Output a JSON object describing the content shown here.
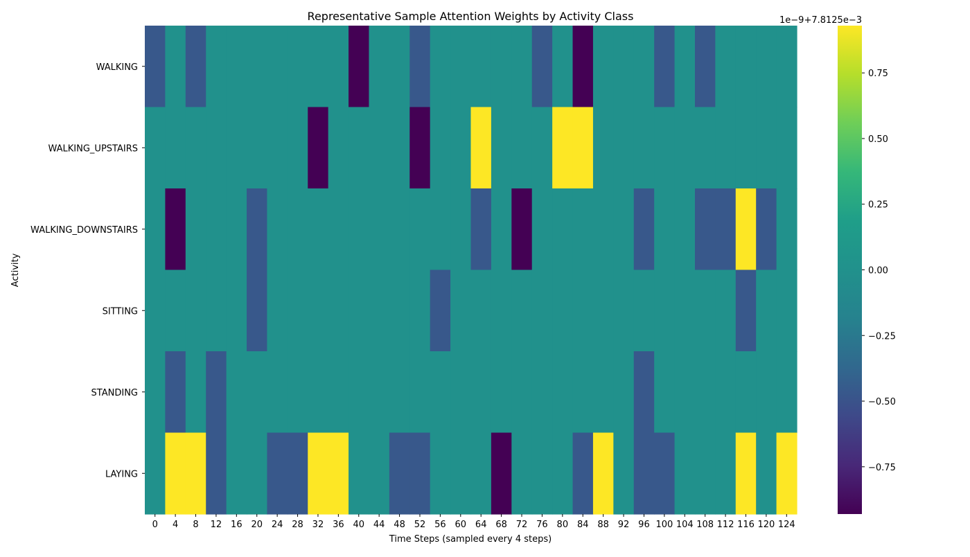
{
  "chart_data": {
    "type": "heatmap",
    "title": "Representative Sample Attention Weights by Activity Class",
    "xlabel": "Time Steps (sampled every 4 steps)",
    "ylabel": "Activity",
    "rows": [
      "WALKING",
      "WALKING_UPSTAIRS",
      "WALKING_DOWNSTAIRS",
      "SITTING",
      "STANDING",
      "LAYING"
    ],
    "x_tick_labels": [
      "0",
      "4",
      "8",
      "12",
      "16",
      "20",
      "24",
      "28",
      "32",
      "36",
      "40",
      "44",
      "48",
      "52",
      "56",
      "60",
      "64",
      "68",
      "72",
      "76",
      "80",
      "84",
      "88",
      "92",
      "96",
      "100",
      "104",
      "108",
      "112",
      "116",
      "120",
      "124"
    ],
    "levels": [
      [
        -1,
        0,
        -1,
        0,
        0,
        0,
        0,
        0,
        0,
        0,
        -2,
        0,
        0,
        -1,
        0,
        0,
        0,
        0,
        0,
        -1,
        0,
        -2,
        0,
        0,
        0,
        -1,
        0,
        -1,
        0,
        0,
        0,
        0
      ],
      [
        0,
        0,
        0,
        0,
        0,
        0,
        0,
        0,
        -2,
        0,
        0,
        0,
        0,
        -2,
        0,
        0,
        2,
        0,
        0,
        0,
        2,
        2,
        0,
        0,
        0,
        0,
        0,
        0,
        0,
        0,
        0,
        0
      ],
      [
        0,
        -2,
        0,
        0,
        0,
        -1,
        0,
        0,
        0,
        0,
        0,
        0,
        0,
        0,
        0,
        0,
        -1,
        0,
        -2,
        0,
        0,
        0,
        0,
        0,
        -1,
        0,
        0,
        -1,
        -1,
        2,
        -1,
        0
      ],
      [
        0,
        0,
        0,
        0,
        0,
        -1,
        0,
        0,
        0,
        0,
        0,
        0,
        0,
        0,
        -1,
        0,
        0,
        0,
        0,
        0,
        0,
        0,
        0,
        0,
        0,
        0,
        0,
        0,
        0,
        -1,
        0,
        0
      ],
      [
        0,
        -1,
        0,
        -1,
        0,
        0,
        0,
        0,
        0,
        0,
        0,
        0,
        0,
        0,
        0,
        0,
        0,
        0,
        0,
        0,
        0,
        0,
        0,
        0,
        -1,
        0,
        0,
        0,
        0,
        0,
        0,
        0
      ],
      [
        0,
        2,
        2,
        -1,
        0,
        0,
        -1,
        -1,
        2,
        2,
        0,
        0,
        -1,
        -1,
        0,
        0,
        0,
        -2,
        0,
        0,
        0,
        -1,
        2,
        0,
        -1,
        -1,
        0,
        0,
        0,
        2,
        0,
        2
      ]
    ],
    "level_to_value": {
      "-2": -0.93,
      "-1": -0.47,
      "0": 0.0,
      "2": 0.93
    },
    "colorbar": {
      "range": [
        -0.93,
        0.93
      ],
      "ticks": [
        -0.75,
        -0.5,
        -0.25,
        0.0,
        0.25,
        0.5,
        0.75
      ],
      "tick_labels": [
        "−0.75",
        "−0.50",
        "−0.25",
        "0.00",
        "0.25",
        "0.50",
        "0.75"
      ],
      "offset_label": "1e−9+7.8125e−3",
      "colormap": "viridis"
    }
  }
}
